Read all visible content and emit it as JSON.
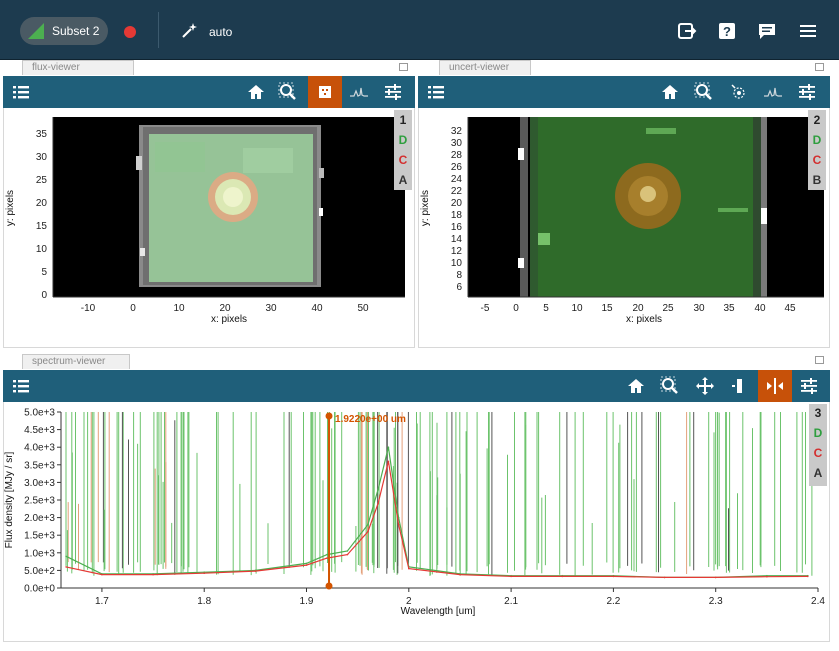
{
  "toolbar": {
    "subset_label": "Subset 2",
    "mode_label": "auto",
    "icons": [
      "export-icon",
      "help-icon",
      "chat-icon",
      "menu-icon"
    ],
    "colors": {
      "bg": "#1d3b4f",
      "subset_green": "#4caf50",
      "record_red": "#e53935"
    }
  },
  "flux_viewer": {
    "tab": "flux-viewer",
    "tools": [
      "layers-icon",
      "home-icon",
      "zoom-icon",
      "image-select-icon",
      "spectrum-icon",
      "settings-icon"
    ],
    "active_tool": "image-select-icon",
    "layers": [
      "1",
      "D",
      "C",
      "A"
    ],
    "xlabel": "x: pixels",
    "ylabel": "y: pixels",
    "xticks": [
      "-10",
      "0",
      "10",
      "20",
      "30",
      "40",
      "50"
    ],
    "yticks": [
      "0",
      "5",
      "10",
      "15",
      "20",
      "25",
      "30",
      "35"
    ]
  },
  "uncert_viewer": {
    "tab": "uncert-viewer",
    "tools": [
      "layers-icon",
      "home-icon",
      "zoom-icon",
      "aperture-icon",
      "spectrum-icon",
      "settings-icon"
    ],
    "layers": [
      "2",
      "D",
      "C",
      "B"
    ],
    "xlabel": "x: pixels",
    "ylabel": "y: pixels",
    "xticks": [
      "-5",
      "0",
      "5",
      "10",
      "15",
      "20",
      "25",
      "30",
      "35",
      "40",
      "45"
    ],
    "yticks": [
      "6",
      "8",
      "10",
      "12",
      "14",
      "16",
      "18",
      "20",
      "22",
      "24",
      "26",
      "28",
      "30",
      "32"
    ]
  },
  "spectrum_viewer": {
    "tab": "spectrum-viewer",
    "tools": [
      "layers-icon",
      "home-icon",
      "zoom-icon",
      "pan-icon",
      "subset-icon",
      "line-select-icon",
      "settings-icon"
    ],
    "active_tool": "line-select-icon",
    "layers": [
      "3",
      "D",
      "C",
      "A"
    ],
    "marker_label": "1.9220e+00 um",
    "marker_color": "#d35400"
  },
  "chart_data": {
    "type": "line",
    "xlabel": "Wavelength [um]",
    "ylabel": "Flux density [MJy / sr]",
    "xlim": [
      1.66,
      2.4
    ],
    "ylim": [
      0,
      5000
    ],
    "xticks": [
      "1.7",
      "1.8",
      "1.9",
      "2",
      "2.1",
      "2.2",
      "2.3",
      "2.4"
    ],
    "yticks": [
      "0.0e+0",
      "5.0e+2",
      "1.0e+3",
      "1.5e+3",
      "2.0e+3",
      "2.5e+3",
      "3.0e+3",
      "3.5e+3",
      "4.0e+3",
      "4.5e+3",
      "5.0e+3"
    ],
    "marker_x": 1.922,
    "series": [
      {
        "color": "#4caf50",
        "x": [
          1.665,
          1.7,
          1.75,
          1.8,
          1.85,
          1.9,
          1.92,
          1.94,
          1.96,
          1.97,
          1.98,
          1.99,
          2.0,
          2.05,
          2.1,
          2.15,
          2.2,
          2.25,
          2.3,
          2.35,
          2.39
        ],
        "values": [
          900,
          400,
          400,
          450,
          500,
          700,
          950,
          1050,
          1800,
          2800,
          4000,
          2000,
          600,
          400,
          350,
          350,
          350,
          300,
          300,
          350,
          350
        ]
      },
      {
        "color": "#e53935",
        "x": [
          1.665,
          1.7,
          1.75,
          1.8,
          1.85,
          1.9,
          1.92,
          1.94,
          1.96,
          1.97,
          1.98,
          1.99,
          2.0,
          2.05,
          2.1,
          2.15,
          2.2,
          2.25,
          2.3,
          2.35,
          2.39
        ],
        "values": [
          600,
          380,
          380,
          420,
          480,
          650,
          850,
          950,
          1600,
          2400,
          3600,
          1800,
          550,
          380,
          330,
          330,
          330,
          300,
          300,
          320,
          330
        ]
      }
    ]
  }
}
